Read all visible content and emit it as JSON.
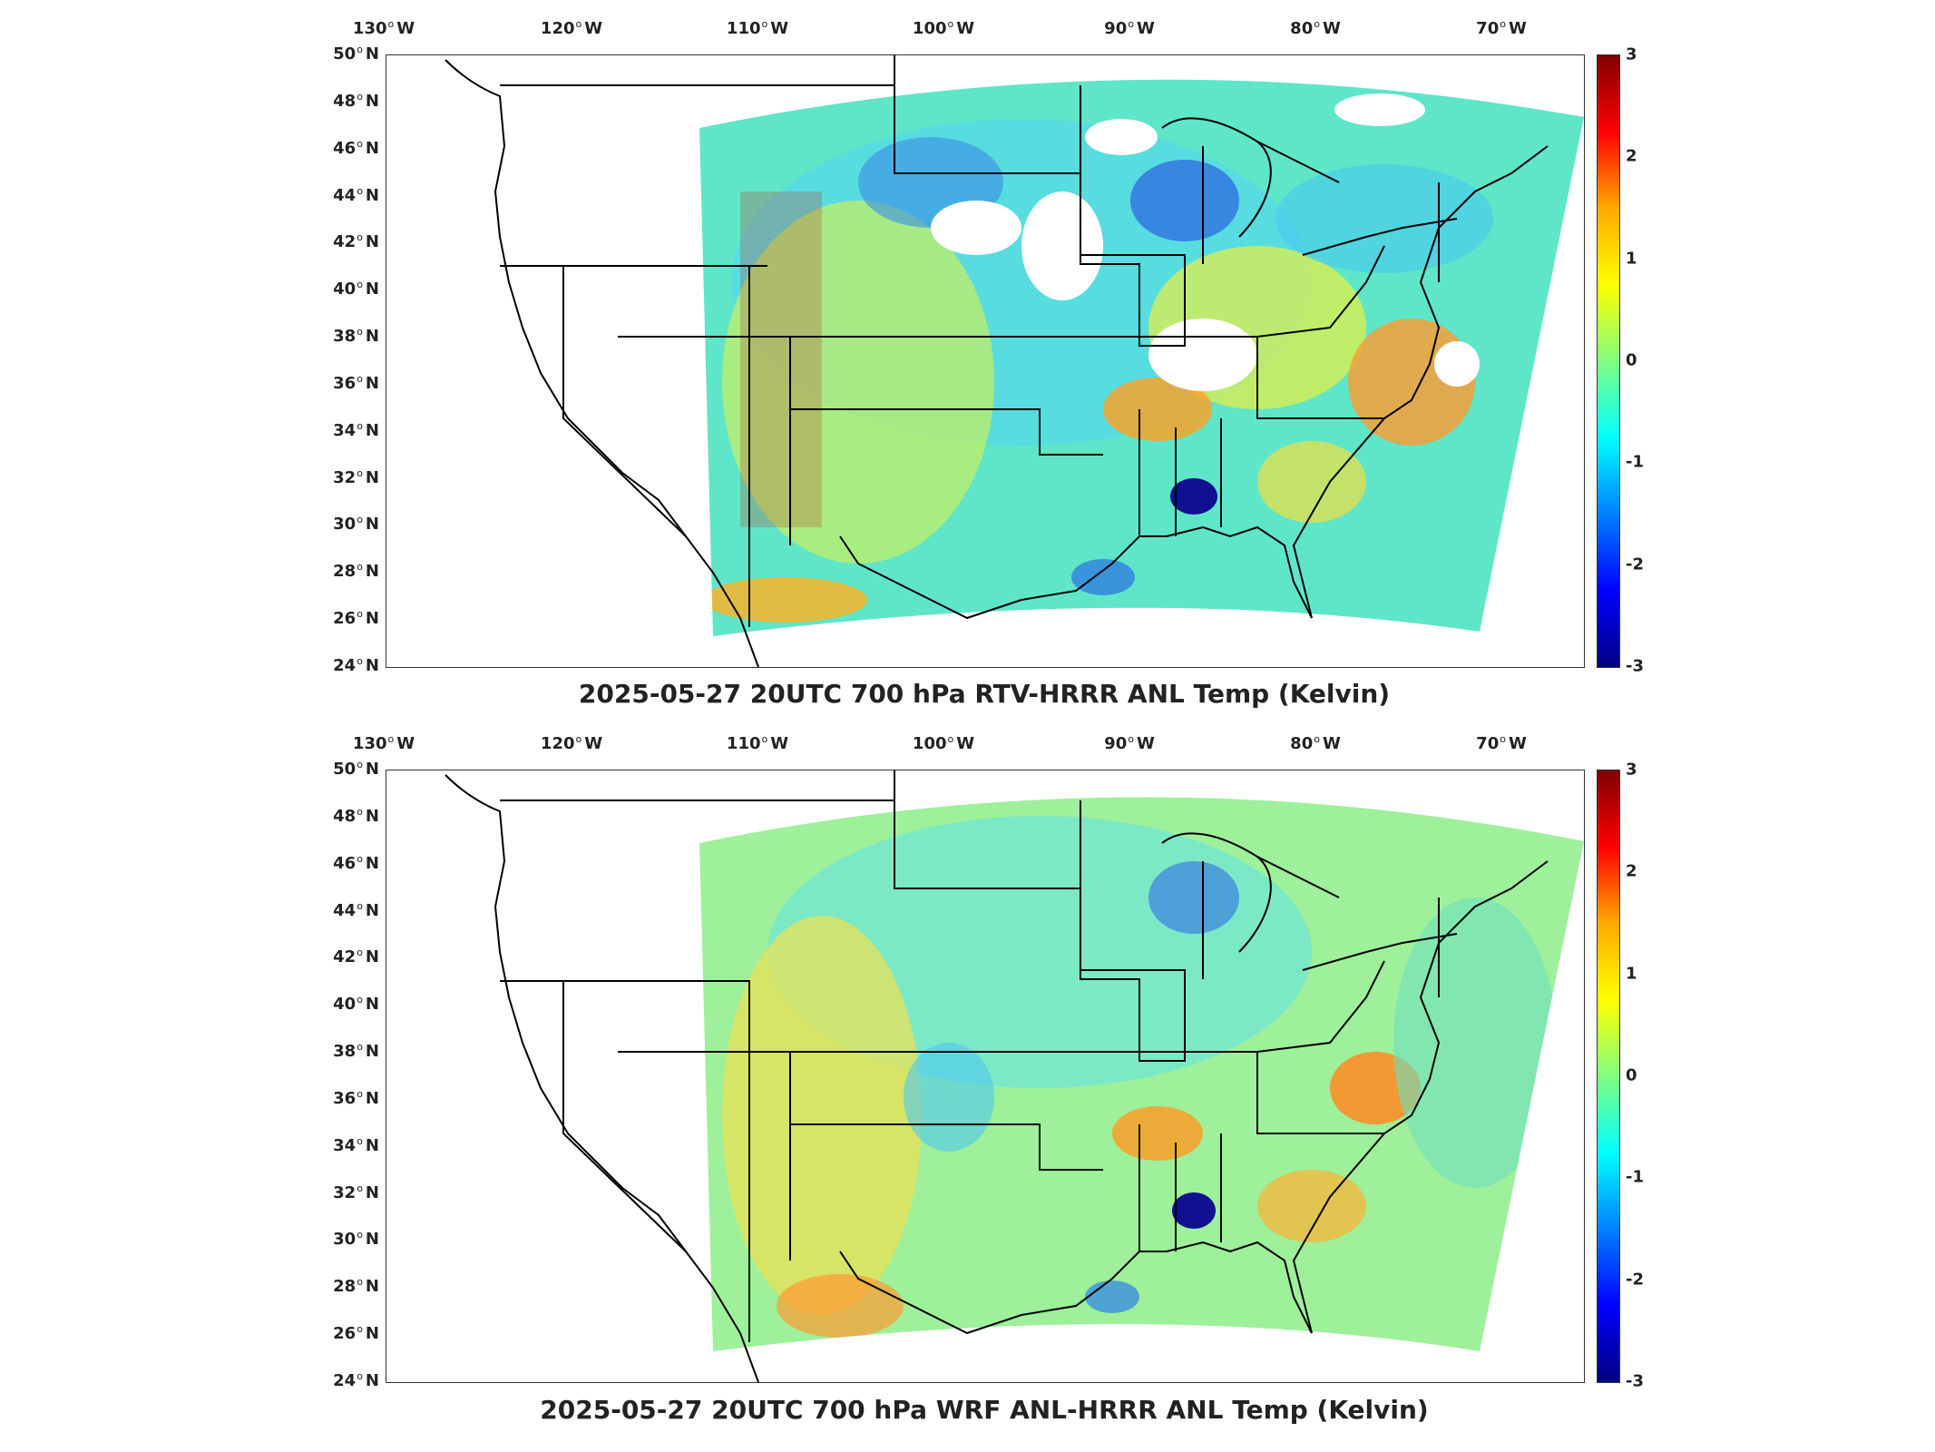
{
  "lon_ticks": [
    {
      "deg": "130",
      "dir": "W"
    },
    {
      "deg": "120",
      "dir": "W"
    },
    {
      "deg": "110",
      "dir": "W"
    },
    {
      "deg": "100",
      "dir": "W"
    },
    {
      "deg": "90",
      "dir": "W"
    },
    {
      "deg": "80",
      "dir": "W"
    },
    {
      "deg": "70",
      "dir": "W"
    }
  ],
  "lat_ticks": [
    {
      "deg": "50",
      "dir": "N"
    },
    {
      "deg": "48",
      "dir": "N"
    },
    {
      "deg": "46",
      "dir": "N"
    },
    {
      "deg": "44",
      "dir": "N"
    },
    {
      "deg": "42",
      "dir": "N"
    },
    {
      "deg": "40",
      "dir": "N"
    },
    {
      "deg": "38",
      "dir": "N"
    },
    {
      "deg": "36",
      "dir": "N"
    },
    {
      "deg": "34",
      "dir": "N"
    },
    {
      "deg": "32",
      "dir": "N"
    },
    {
      "deg": "30",
      "dir": "N"
    },
    {
      "deg": "28",
      "dir": "N"
    },
    {
      "deg": "26",
      "dir": "N"
    },
    {
      "deg": "24",
      "dir": "N"
    }
  ],
  "colorbar": {
    "ticks": [
      "3",
      "2",
      "1",
      "0",
      "-1",
      "-2",
      "-3"
    ],
    "colormap": [
      "#800000",
      "#ff0000",
      "#ffaa00",
      "#ffff00",
      "#80ff80",
      "#00ffff",
      "#0080ff",
      "#0000ff",
      "#000080"
    ]
  },
  "panels": [
    {
      "title": "2025-05-27 20UTC 700 hPa RTV-HRRR ANL Temp (Kelvin)"
    },
    {
      "title": "2025-05-27 20UTC 700 hPa WRF ANL-HRRR ANL Temp (Kelvin)"
    }
  ]
}
